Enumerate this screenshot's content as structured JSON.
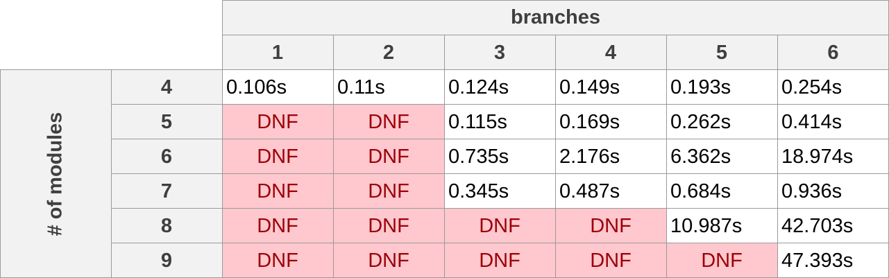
{
  "column_group_label": "branches",
  "row_group_label": "# of modules",
  "columns": [
    "1",
    "2",
    "3",
    "4",
    "5",
    "6"
  ],
  "rows": [
    {
      "label": "4",
      "cells": [
        "0.106s",
        "0.11s",
        "0.124s",
        "0.149s",
        "0.193s",
        "0.254s"
      ]
    },
    {
      "label": "5",
      "cells": [
        "DNF",
        "DNF",
        "0.115s",
        "0.169s",
        "0.262s",
        "0.414s"
      ]
    },
    {
      "label": "6",
      "cells": [
        "DNF",
        "DNF",
        "0.735s",
        "2.176s",
        "6.362s",
        "18.974s"
      ]
    },
    {
      "label": "7",
      "cells": [
        "DNF",
        "DNF",
        "0.345s",
        "0.487s",
        "0.684s",
        "0.936s"
      ]
    },
    {
      "label": "8",
      "cells": [
        "DNF",
        "DNF",
        "DNF",
        "DNF",
        "10.987s",
        "42.703s"
      ]
    },
    {
      "label": "9",
      "cells": [
        "DNF",
        "DNF",
        "DNF",
        "DNF",
        "DNF",
        "47.393s"
      ]
    }
  ],
  "colors": {
    "header_bg": "#f2f2f2",
    "dnf_bg": "#ffc7ce",
    "dnf_text": "#9c0006",
    "grid_line": "#9a9a9a"
  }
}
